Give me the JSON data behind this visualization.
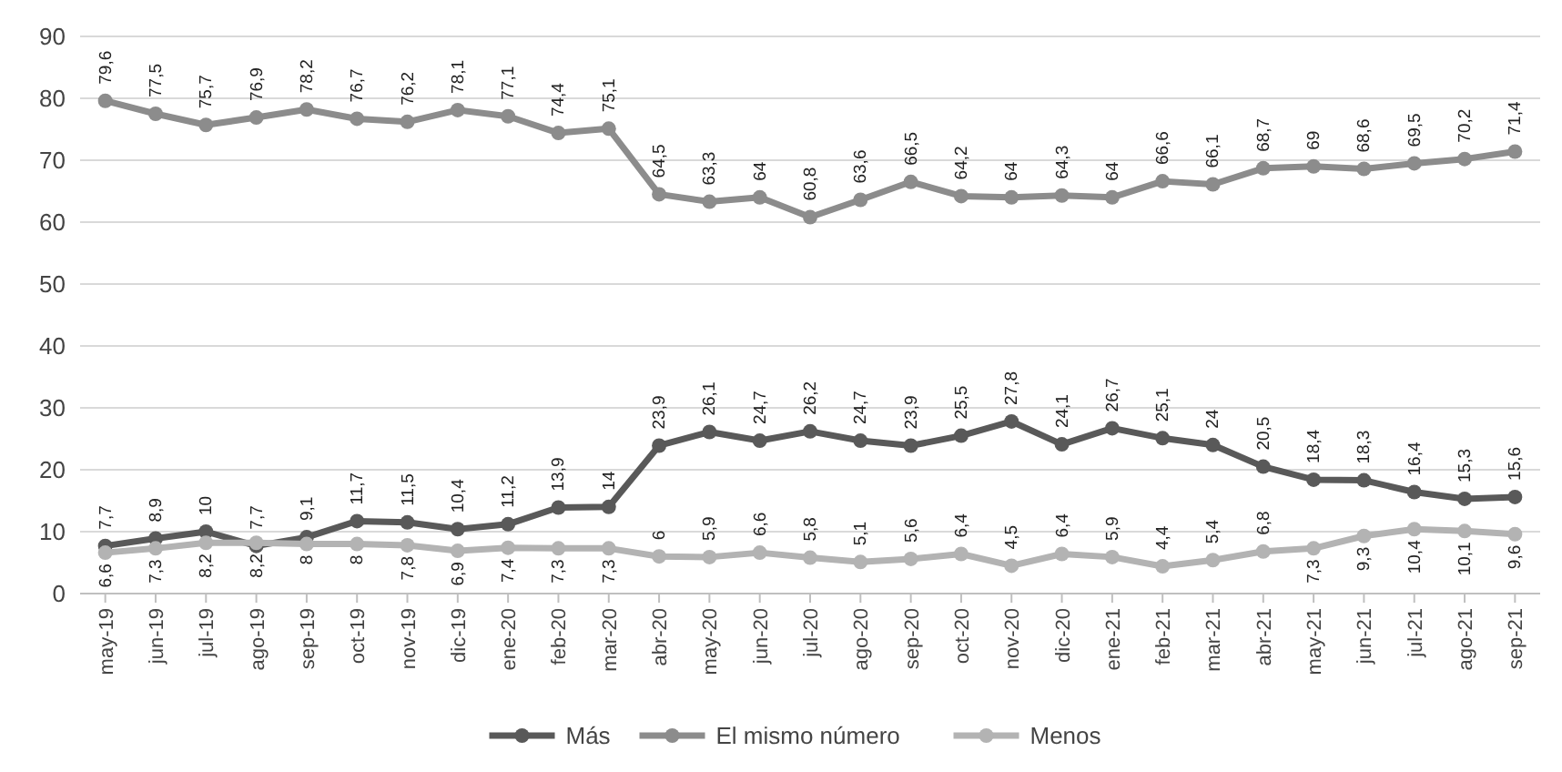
{
  "chart_data": {
    "type": "line",
    "categories": [
      "may-19",
      "jun-19",
      "jul-19",
      "ago-19",
      "sep-19",
      "oct-19",
      "nov-19",
      "dic-19",
      "ene-20",
      "feb-20",
      "mar-20",
      "abr-20",
      "may-20",
      "jun-20",
      "jul-20",
      "ago-20",
      "sep-20",
      "oct-20",
      "nov-20",
      "dic-20",
      "ene-21",
      "feb-21",
      "mar-21",
      "abr-21",
      "may-21",
      "jun-21",
      "jul-21",
      "ago-21",
      "sep-21"
    ],
    "series": [
      {
        "name": "Más",
        "color": "#595959",
        "values": [
          7.7,
          8.9,
          10,
          7.7,
          9.1,
          11.7,
          11.5,
          10.4,
          11.2,
          13.9,
          14,
          23.9,
          26.1,
          24.7,
          26.2,
          24.7,
          23.9,
          25.5,
          27.8,
          24.1,
          26.7,
          25.1,
          24,
          20.5,
          18.4,
          18.3,
          16.4,
          15.3,
          15.6
        ],
        "value_labels": [
          "7,7",
          "8,9",
          "10",
          "7,7",
          "9,1",
          "11,7",
          "11,5",
          "10,4",
          "11,2",
          "13,9",
          "14",
          "23,9",
          "26,1",
          "24,7",
          "26,2",
          "24,7",
          "23,9",
          "25,5",
          "27,8",
          "24,1",
          "26,7",
          "25,1",
          "24",
          "20,5",
          "18,4",
          "18,3",
          "16,4",
          "15,3",
          "15,6"
        ]
      },
      {
        "name": "El mismo número",
        "color": "#8c8c8c",
        "values": [
          79.6,
          77.5,
          75.7,
          76.9,
          78.2,
          76.7,
          76.2,
          78.1,
          77.1,
          74.4,
          75.1,
          64.5,
          63.3,
          64,
          60.8,
          63.6,
          66.5,
          64.2,
          64,
          64.3,
          64,
          66.6,
          66.1,
          68.7,
          69,
          68.6,
          69.5,
          70.2,
          71.4
        ],
        "value_labels": [
          "79,6",
          "77,5",
          "75,7",
          "76,9",
          "78,2",
          "76,7",
          "76,2",
          "78,1",
          "77,1",
          "74,4",
          "75,1",
          "64,5",
          "63,3",
          "64",
          "60,8",
          "63,6",
          "66,5",
          "64,2",
          "64",
          "64,3",
          "64",
          "66,6",
          "66,1",
          "68,7",
          "69",
          "68,6",
          "69,5",
          "70,2",
          "71,4"
        ]
      },
      {
        "name": "Menos",
        "color": "#b3b3b3",
        "values": [
          6.6,
          7.3,
          8.2,
          8.2,
          8,
          8,
          7.8,
          6.9,
          7.4,
          7.3,
          7.3,
          6,
          5.9,
          6.6,
          5.8,
          5.1,
          5.6,
          6.4,
          4.5,
          6.4,
          5.9,
          4.4,
          5.4,
          6.8,
          7.3,
          9.3,
          10.4,
          10.1,
          9.6
        ],
        "value_labels": [
          "6,6",
          "7,3",
          "8,2",
          "8,2",
          "8",
          "8",
          "7,8",
          "6,9",
          "7,4",
          "7,3",
          "7,3",
          "6",
          "5,9",
          "6,6",
          "5,8",
          "5,1",
          "5,6",
          "6,4",
          "4,5",
          "6,4",
          "5,9",
          "4,4",
          "5,4",
          "6,8",
          "7,3",
          "9,3",
          "10,4",
          "10,1",
          "9,6"
        ]
      }
    ],
    "ylim": [
      0,
      90
    ],
    "yticks": [
      0,
      10,
      20,
      30,
      40,
      50,
      60,
      70,
      80,
      90
    ],
    "grid": "y",
    "legend": "bottom",
    "marker": "circle",
    "line_style": "solid"
  }
}
